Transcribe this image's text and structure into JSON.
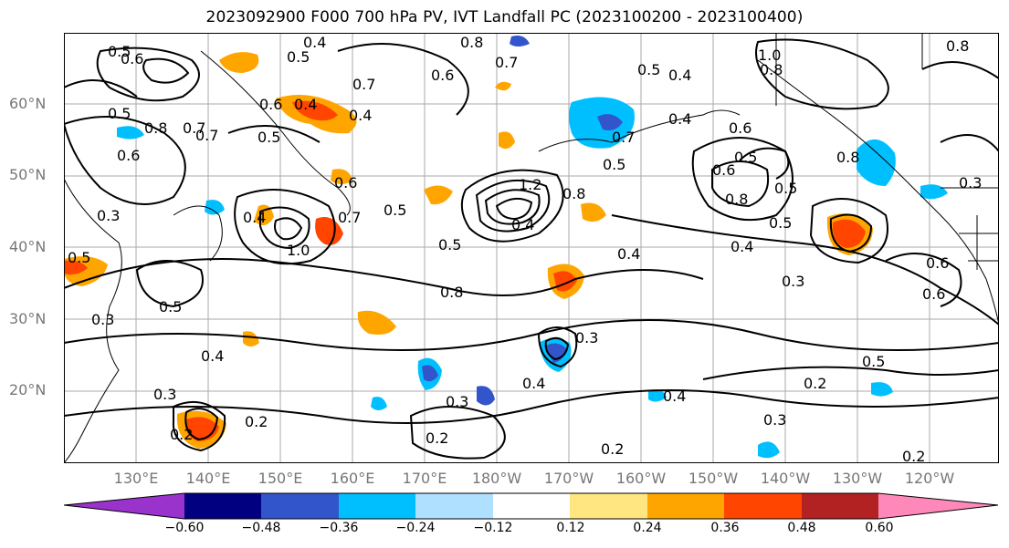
{
  "title": "2023092900 F000 700 hPa PV, IVT Landfall PC (2023100200 - 2023100400)",
  "map": {
    "lat_labels": [
      "60°N",
      "50°N",
      "40°N",
      "30°N",
      "20°N"
    ],
    "lon_labels": [
      "130°E",
      "140°E",
      "150°E",
      "160°E",
      "170°E",
      "180°W",
      "170°W",
      "160°W",
      "150°W",
      "140°W",
      "130°W",
      "120°W"
    ],
    "contour_labels": [
      "0.5",
      "0.6",
      "0.4",
      "0.5",
      "0.8",
      "0.7",
      "0.5",
      "0.4",
      "1.0",
      "0.8",
      "0.8",
      "0.7",
      "0.6",
      "0.4",
      "0.6",
      "0.5",
      "0.8",
      "0.7",
      "0.5",
      "0.4",
      "0.6",
      "0.7",
      "0.7",
      "0.5",
      "0.4",
      "0.6",
      "0.5",
      "0.6",
      "0.8",
      "0.5",
      "0.6",
      "1.2",
      "0.8",
      "0.8",
      "0.5",
      "0.3",
      "0.3",
      "0.4",
      "0.7",
      "1.0",
      "0.5",
      "0.4",
      "0.4",
      "0.5",
      "0.6",
      "0.3",
      "0.6",
      "0.5",
      "0.8",
      "0.3",
      "0.4",
      "0.5",
      "0.5",
      "0.4",
      "0.3",
      "0.4",
      "0.2",
      "0.4",
      "0.3",
      "0.3",
      "0.2",
      "0.2",
      "0.2",
      "0.3",
      "0.2",
      "0.2"
    ]
  },
  "colorbar": {
    "ticks": [
      "−0.60",
      "−0.48",
      "−0.36",
      "−0.24",
      "−0.12",
      "0.12",
      "0.24",
      "0.36",
      "0.48",
      "0.60"
    ],
    "colors": [
      "#9933cc",
      "#000080",
      "#3355cc",
      "#00bfff",
      "#b0e0ff",
      "#ffffff",
      "#ffe680",
      "#ffa500",
      "#ff4500",
      "#b22222",
      "#ff88bb"
    ]
  }
}
